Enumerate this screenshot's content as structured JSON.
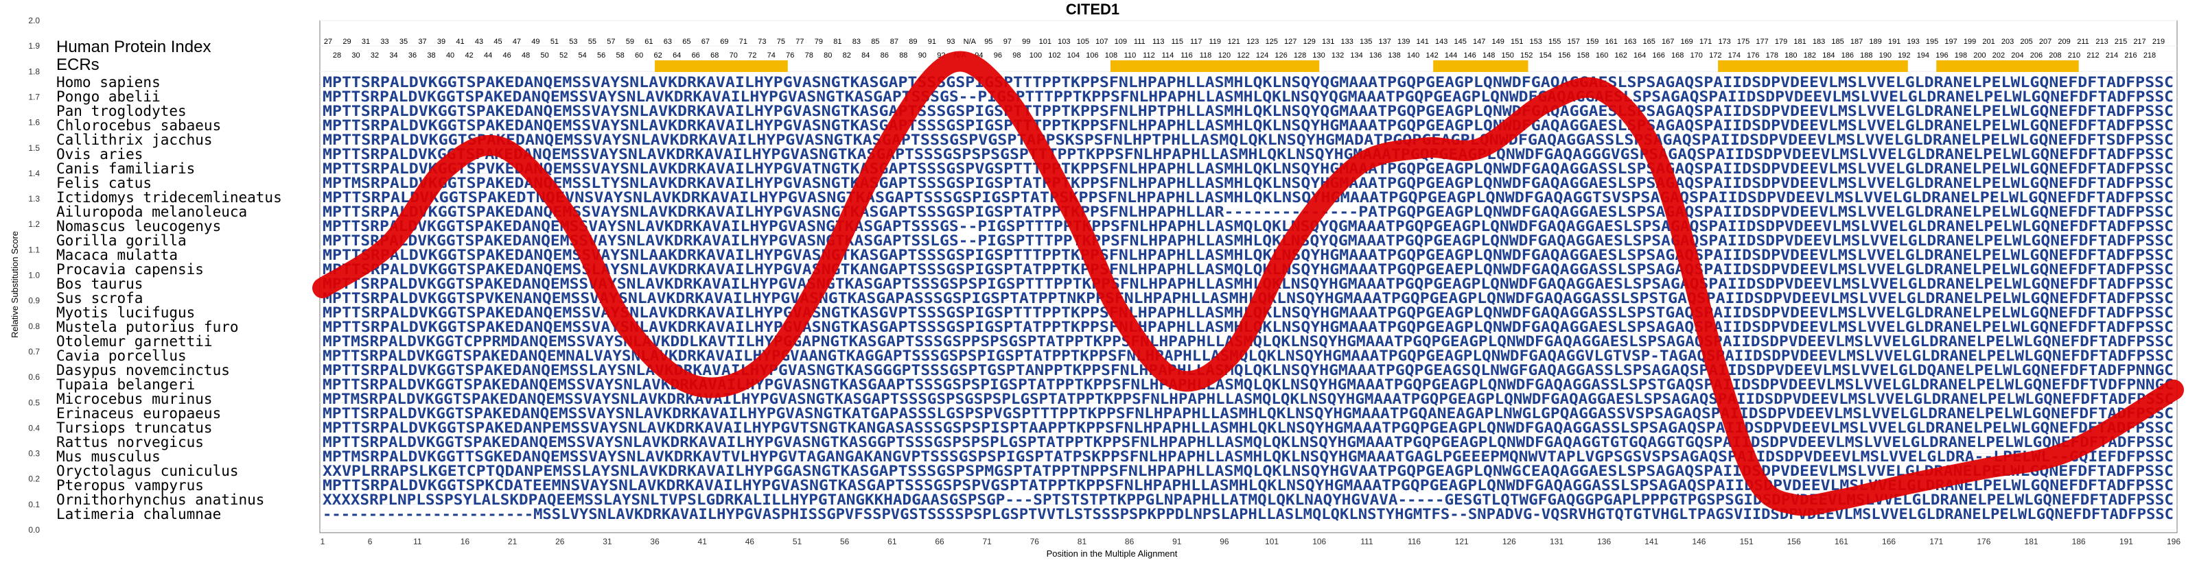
{
  "chart_data": {
    "type": "line",
    "title": "CITED1",
    "xlabel": "Position in the Multiple Alignment",
    "ylabel": "Relative Substitution Score",
    "ylim": [
      0,
      2.0
    ],
    "xlim": [
      1,
      196
    ],
    "y_ticks": [
      "0.0",
      "0.1",
      "0.2",
      "0.3",
      "0.4",
      "0.5",
      "0.6",
      "0.7",
      "0.8",
      "0.9",
      "1.0",
      "1.1",
      "1.2",
      "1.3",
      "1.4",
      "1.5",
      "1.6",
      "1.7",
      "1.8",
      "1.9",
      "2.0"
    ],
    "x_ticks": [
      "1",
      "6",
      "11",
      "16",
      "21",
      "26",
      "31",
      "36",
      "41",
      "46",
      "51",
      "56",
      "61",
      "66",
      "71",
      "76",
      "81",
      "86",
      "91",
      "96",
      "101",
      "106",
      "111",
      "116",
      "121",
      "126",
      "131",
      "136",
      "141",
      "146",
      "151",
      "156",
      "161",
      "166",
      "171",
      "176",
      "181",
      "186",
      "191",
      "196"
    ],
    "human_index_label": "Human Protein Index",
    "ecr_label": "ECRs",
    "human_index_top": [
      "27",
      "29",
      "31",
      "33",
      "35",
      "37",
      "39",
      "41",
      "43",
      "45",
      "47",
      "49",
      "51",
      "53",
      "55",
      "57",
      "59",
      "61",
      "63",
      "65",
      "67",
      "69",
      "71",
      "73",
      "75",
      "77",
      "79",
      "81",
      "83",
      "85",
      "87",
      "89",
      "91",
      "93",
      "N/A",
      "95",
      "97",
      "99",
      "101",
      "103",
      "105",
      "107",
      "109",
      "111",
      "113",
      "115",
      "117",
      "119",
      "121",
      "123",
      "125",
      "127",
      "129",
      "131",
      "133",
      "135",
      "137",
      "139",
      "141",
      "143",
      "145",
      "147",
      "149",
      "151",
      "153",
      "155",
      "157",
      "159",
      "161",
      "163",
      "165",
      "167",
      "169",
      "171",
      "173",
      "175",
      "177",
      "179",
      "181",
      "183",
      "185",
      "187",
      "189",
      "191",
      "193",
      "195",
      "197",
      "199",
      "201",
      "203",
      "205",
      "207",
      "209",
      "211",
      "213",
      "215",
      "217",
      "219"
    ],
    "human_index_bottom": [
      "28",
      "30",
      "32",
      "34",
      "36",
      "38",
      "40",
      "42",
      "44",
      "46",
      "48",
      "50",
      "52",
      "54",
      "56",
      "58",
      "60",
      "62",
      "64",
      "66",
      "68",
      "70",
      "72",
      "74",
      "76",
      "78",
      "80",
      "82",
      "84",
      "86",
      "88",
      "90",
      "92",
      "N/A",
      "94",
      "96",
      "98",
      "100",
      "102",
      "104",
      "106",
      "108",
      "110",
      "112",
      "114",
      "116",
      "118",
      "120",
      "122",
      "124",
      "126",
      "128",
      "130",
      "132",
      "134",
      "136",
      "138",
      "140",
      "142",
      "144",
      "146",
      "148",
      "150",
      "152",
      "154",
      "156",
      "158",
      "160",
      "162",
      "164",
      "166",
      "168",
      "170",
      "172",
      "174",
      "176",
      "178",
      "180",
      "182",
      "184",
      "186",
      "188",
      "190",
      "192",
      "194",
      "196",
      "198",
      "200",
      "202",
      "204",
      "206",
      "208",
      "210",
      "212",
      "214",
      "216",
      "218"
    ],
    "ecr_regions": [
      [
        36,
        50
      ],
      [
        84,
        106
      ],
      [
        118,
        128
      ],
      [
        148,
        168
      ],
      [
        171,
        186
      ]
    ],
    "ecr_color": "#f5b800",
    "curve_color": "#e00000",
    "curve": {
      "x": [
        1,
        8,
        14,
        20,
        27,
        33,
        40,
        47,
        53,
        60,
        67,
        73,
        80,
        85,
        91,
        97,
        103,
        110,
        117,
        123,
        130,
        136,
        142,
        148,
        152,
        156,
        161,
        168,
        176,
        185,
        196
      ],
      "y": [
        0.95,
        1.12,
        1.42,
        1.5,
        1.22,
        0.8,
        0.57,
        0.63,
        0.95,
        1.48,
        1.83,
        1.7,
        1.25,
        0.85,
        0.59,
        0.7,
        1.12,
        1.43,
        1.5,
        1.5,
        1.68,
        1.72,
        1.42,
        0.62,
        0.2,
        0.1,
        0.12,
        0.18,
        0.24,
        0.31,
        0.55
      ]
    },
    "species": [
      {
        "name": "Homo sapiens",
        "seq": "MPTTSRPALDVKGGTSPAKEDANQEMSSVAYSNLAVKDRKAVAILHYPGVASNGTKASGAPTSSSGSPIGSPTTTPPTKPPSFNLHPAPHLLASMHLQKLNSQYQGMAAATPGQPGEAGPLQNWDFGAQAGGAESLSPSAGAQSPAIIDSDPVDEEVLMSLVVELGLDRANELPELWLGQNEFDFTADFPSSC"
      },
      {
        "name": "Pongo abelii",
        "seq": "MPTTSRPALDVKGGTSPAKEDANQEMSSVAYSNLAVKDRKAVAILHYPGVASNGTKASGAPTSSSGS--PIGSPTTTPPTKPPSFNLHPAPHLLASMHLQKLNSQYQGMAAATPGQPGEAGPLQNWDFGAQAGGAESLSPSAGAQSPAIIDSDPVDEEVLMSLVVELGLDRANELPELWLGQNEFDFTADFPSSC"
      },
      {
        "name": "Pan troglodytes",
        "seq": "MPTTSRPALDVKGGTSPAKEDANQEMSSVAYSNLAVKDRKAVAILHYPGVASNGTKASGAPTSSSGSPIGSPTTTPPTKPPSFNLHPTPHLLASMHLQKLNSQYQGMAAATPGQPGEAGPLQNWDFGAQAGGAESLSPSAGAQSPAIIDSDPVDEEVLMSLVVELGLDRANELPELWLGQNEFDFTADFPSSC"
      },
      {
        "name": "Chlorocebus sabaeus",
        "seq": "MPTTSRPALDVKGGTSPAKEDANQEMSSVAYSNLAVKDRKAVAILHYPGVASNGTKASGAPTSSSGSPIGSPTTTPPTKPPSFNLHPAPHLLASMHLQKLNSQYHGMAAATPGQPGEAGPLQNWDFGAQAGGAESLSPSAGAQSPAIIDSDPVDEEVLMSLVVELGLDRANELPELWLGQNEFDFTADFPSSC"
      },
      {
        "name": "Callithrix jacchus",
        "seq": "MPTTSRPALDVKGGTSPAKEDANQEMSSVAYSNLAVKDRKAVAILHYPGVASNGTKASGAPTSSSGSPVGSPTAPPSKSPSFNLHPTPHLLASMQLQKLNSQYHGMADATPGQPGEAGPLQNWDFGAQAGGASSLSPSAGAQSPAIIDSDPVDEEVLMSLVVELGLDRANELPELWLGQNEFDFTSDFPSSC"
      },
      {
        "name": "Ovis aries",
        "seq": "MPTTSRPALDVKGGTSPAKEDANQEMSSVAYSNLAVKDRKAVAILHYPGVASNGTKASGAPTSSSGSPSPSGSPTTTPPTKPPSFNLHPAPHLLASMHLQKLNSQYHGMAAATPGQPGEAGPLQNWDFGAQAGGGVGSPSAGAQSPAIIDSDPVDEEVLMSLVVELGLDRANELPELWLGQNEFDFTADFPSSC"
      },
      {
        "name": "Canis familiaris",
        "seq": "MPTTSRPALDVKGGTSPVKEDANQEMSSVAYSNLAVKDRKAVAILHYPGVATNGTKASGAPTSSSGSPVGSPTTTPPTKPPSFNLHPAPHLLASMHLQKLNSQYHGMAAATPGQPGEAGPLQNWDFGAQAGGASSLSPSAGAQSPAIIDSDPVDEEVLMSLVVELGLDRANELPELWLGQNEFDFTADFPSSC"
      },
      {
        "name": "Felis catus",
        "seq": "MPTMSRPALDVKGGTSPAKEDANQEMSSLTYSNLAVKDRKAVAILHYPGVASNGTKASGAPTSSSGSPIGSPTATPPTKPPSFNLHPAPHLLASMHLQKLNSQYHGMAAATPGQPGEAGPLQNWDFGAQAGGAESLSPSAGAQSPAIIDSDPVDEEVLMSLVVELGLDRANELPELWLGQNEFDFTADFPSSC"
      },
      {
        "name": "Ictidomys tridecemlineatus",
        "seq": "MPTTSRPALDVKGGTSPAKEDTNQEVNSVAYSNLAVKDRKAVAILHYPGVASNGTKASGAPTSSSGSPIGSPTATPSKPPSFNLHPAPHLLASMHLQKLNSQYHGMAAATPGQPGEAGPLQNWDFGAQAGGTSVSPSAGAQSPAIIDSDPVDEEVLMSLVVELGLDRANELPELWLGQNEFDFTADFPSSC"
      },
      {
        "name": "Ailuropoda melanoleuca",
        "seq": "MPTTSRPALDVKGGTSPAKEDANQEMSSVAYSNLAVKDRKAVAILHYPGVASNGTKASGAPTSSSGSPIGSPTATPPTKPPSFNLHPAPHLLAR--------------PATPGQPGEAGPLQNWDFGAQAGGAESLSPSAGAQSPAIIDSDPVDEEVLMSLVVELGLDRANELPELWLGQNEFDFTADFPSSC"
      },
      {
        "name": "Nomascus leucogenys",
        "seq": "MPTTSRPALDVKGGTSPAKEDANQEMSSVAYSNLAVKDRKAVAILHYPGVASNGTKASGAPTSSSGS--PIGSPTTTPPTKPPSFNLHPAPHLLASMQLQKLNSQYQGMAAATPGQPGEAGPLQNWDFGAQAGGAESLSPSAGAQSPAIIDSDPVDEEVLMSLVVELGLDRANELPELWLGQNEFDFTADFPSSC"
      },
      {
        "name": "Gorilla gorilla",
        "seq": "MPTTSRPALDVKGGTSPAKEDANQEMSSVAYSNLAVKDRKAVAILHYPGVASNGTKASGAPTSSLGS--PIGSPTTTPPTKPPSFNLHPAPHLLASMHLQKLNSQYQGMAAATPGQPGEAGPLQNWDFGAQAGGAESLSPSAGAQSPAIIDSDPVDEEVLMSLVVELGLDRANELPELWLGQNEFDFTADFPSSC"
      },
      {
        "name": "Macaca mulatta",
        "seq": "MPTTSRPALDVKGGTSPAKEDANQEMSSVAYSNLAAKDRKAVAILHYPGVASNGTKASGAPTSSSGSPIGSPTTTPPTKPPSFNLHPAPHLLASMHLQKLNSQYHGMAAATPGQPGEAGPLQNWDFGAQAGGAESLSPSAGAQSPAIIDSDPVDEEVLMSLVVELGLDRANELPELWLGQNEFDFTADFPSSC"
      },
      {
        "name": "Procavia capensis",
        "seq": "MPTTSRPALDVKGGTSPAKEDANQEMSSLAYSNLAVKDRKAVAILHYPGVASNGTKANGAPTSSSGSPIGSPTATPPTKPPSFNLHPAPHLLASMQLQKLNSQYHGMAAATPGQPGEAEPLQNWDFGAQAGGASSLSPSAGAQSPAIIDSDPVDEEVLMSLVVELGLDRANELPELWLGQNEFDFTADFPSSC"
      },
      {
        "name": "Bos taurus",
        "seq": "MPTTSRPALDVKGGTSPAKEDANQEMSSVAYSNLAVKDRKAVAILHYPGVASNGTKASGAPTSSSGSPSPIGSPTTTPPTKPPSFNLHPAPHLLASMHLQKLNSQYHGMAAATPGQPGEAGPLQNWDFGAQAGGAESLSPSAGAQSPAIIDSDPVDEEVLMSLVVELGLDRANELPELWLGQNEFDFTADFPSSC"
      },
      {
        "name": "Sus scrofa",
        "seq": "MPTTSRPALDVKGGTSPVKENANQEMSSVAYSNLAVKDRKAVAILHYPGVASNGTKASGAPASSSGSPIGSPTATPPTNKPPSFNLHPAPHLLASMHLQKLNSQYHGMAAATPGQPGEAGPLQNWDFGAQAGGASSLSPSTGAQSPAIIDSDPVDEEVLMSLVVELGLDRANELPELWLGQNEFDFTADFPSSC"
      },
      {
        "name": "Myotis lucifugus",
        "seq": "MPTTSRPALDVKGGTSPAKEDANQEMSSVAYSNLAVKDRKAVAILHYPGVASNGTKASGVPTSSSGSPIGSPTTTPPTKPPSFNLHPAPHLLASMHLQKLNSQYHGMAAATPGQPGEAGPLQNWDFGAQAGGASSLSPSTGAQSPAIIDSDPVDEEVLMSLVVELGLDRANELPELWLGQNEFDFTADFPSSC"
      },
      {
        "name": "Mustela putorius furo",
        "seq": "MPTTSRPALDVKGGTSPAKEDANQEMSSVAYSNLAVKDRKAVAILHYPGVASNGTKASGAPTSSSGSPIGSPTATPPTKPPSFNLHPAPHLLASMHLQKLNSQYHGMAAATPGQPGEAGPLQNWDFGAQAGGAESLSPSAGAQSPAIIDSDPVDEEVLMSLVVELGLDRANELPELWLGQNEFDFTADFPSSC"
      },
      {
        "name": "Otolemur garnettii",
        "seq": "MPTMSRPALDVKGGTCPPRMDANQEMSSVAYSNLAVKDDLKAVTILHYPGGAPNGTKASGAPTSSSGSPPSPSGSPTATPPTKPPSFNLHPAPHLLASMQLQKLNSQYHGMAAATPGQPGEAGPLQNWDFGAQAGGAESLSPSAGAQSPAIIDSDPVDEEVLMSLVVELGLDRANELPELWLGQNEFDFTADFPSSC"
      },
      {
        "name": "Cavia porcellus",
        "seq": "MPTTSRPALDVKGGTSPAKEDANQEMNALVAYSNLAVKDRKAVAILHYPGVAANGTKAGGAPTSSSGSPSPIGSPTATPPTKPPSFNLHPAPHLLASMQLQKLNSQYHGMAAATPGQPGEAGPLQNWDFGAQAGGVLGTVSP-TAGAQSPAIIDSDPVDEEVLMSLVVELGLDRANELPELWLGQNEFDFTADFPSSC"
      },
      {
        "name": "Dasypus novemcinctus",
        "seq": "MPTTSRPALDVKGGTSPAKEDANQEMSSLAYSNLAVKDRKAVAILHYPGVASNGTKASGGGPTSSSGSPTGSPTANPPTKPPSFNLHPAPHLLASMQLQKLNSQYHGMAAATPGQPGEAGSQLNWGFGAQAGGASSLSPSAGAQSPAIIDSDPVDEEVLMSLVVELGLDQANELPELWLGQNEFDFTADFPNNGC"
      },
      {
        "name": "Tupaia belangeri",
        "seq": "MPTTSRPALDVKGGTSPAKEDANQEMSSVAYSNLAVKDRKAVAILHYPGVASNGTKASGAAPTSSSGSPSPIGSPTATPPTKPPSFNLHPAPHLLASMQLQKLNSQYHGMAAATPGQPGEAGPLQNWDFGAQAGGASSLSPSTGAQSPAIIDSDPVDEEVLMSLVVELGLDRANELPELWLGQNEFDFTVDFPNNGC"
      },
      {
        "name": "Microcebus murinus",
        "seq": "MPTMSRPALDVKGGTSPAKEDANQEMSSVAYSNLAVKDRKAVAILHYPGVASNGTKASGAPTSSSGSPSGSPSPLGSPTATPPTKPPSFNLHPAPHLLASMQLQKLNSQYHGMAAATPGQPGEAGPLQNWDFGAQAGGAESLSPSAGAQSPAIIDSDPVDEEVLMSLVVELGLDRANELPELWLGQNEFDFTADFPSSC"
      },
      {
        "name": "Erinaceus europaeus",
        "seq": "MPTTSRPALDVKGGTSPAKEDANQEMSSVAYSNLAVKDRKAVAILHYPGVASNGTKATGAPASSSLGSPSPVGSPTTTPPTKPPSFNLHPAPHLLASMHLQKLNSQYHGMAAATPGQANEAGAPLNWGLGPQAGGASSVSPSAGAQSPAIIDSDPVDEEVLMSLVVELGLDRANELPELWLGQNEFDFTADFPSSC"
      },
      {
        "name": "Tursiops truncatus",
        "seq": "MPTTSRPALDVKGGTSPAKEDANPEMSSVAYSNLAVKDRKAVAILHYPGVTSNGTKANGASASSSGSPSPISPTAAPPTKPPSFNLHPAPHLLASMHLQKLNSQYHGMAAATPGQPGEAGPLQNWDFGAQAGGASSLSPSAGAQSPAIIDSDPVDEEVLMSLVVELGLDRANELPELWLGQNEFDFTADFPSSC"
      },
      {
        "name": "Rattus norvegicus",
        "seq": "MPTTSRPALDVKGGTSPAKEDANQEMSSVAYSNLAVKDRKAVAILHYPGVASNGTKASGGPTSSSGSPSPSPLGSPTATPPTKPPSFNLHPAPHLLASMQLQKLNSQYHGMAAATPGQPGEAGPLQNWDFGAQAGGTGTGQAGGTGQSPAIIDSDPVDEEVLMSLVVELGLDRANELPELWLGQNEFDFTADFPSSC"
      },
      {
        "name": "Mus musculus",
        "seq": "MPTMSRPALDVKGGTTSGKEDANQEMSSVAYSNLAVKDRKAVTVLHYPGVTAGANGAKANGVPTSSSGSPSPIGSPTATPSKPPSFNLHPAPHLLASMHLQKLNSQYHGMAAATGAGLPGEEEPMQNWVTAPLVGPSGSVSPSAGAQSPAIIDSDPVDEEVLMSLVVELGLDRA--LPELWL--GQIEFDFPSSC"
      },
      {
        "name": "Oryctolagus cuniculus",
        "seq": "XXVPLRRAPSLKGETCPTQDANPEMSSLAYSNLAVKDRKAVAILHYPGGASNGTKASGAPTSSSGSPSPMGSPTATPPTNPPSFNLHPAPHLLASMQLQKLNSQYHGVAATPGQPGEAGPLQNWGCEAQAGGAESLSPSAGAQSPAIIDSDPVDEEVLMSLVVELGLDRANELPELWLGQNEFDFTADFPSSC"
      },
      {
        "name": "Pteropus vampyrus",
        "seq": "MPTTSRPALDVKGGTSPKCDATEEMNSVAYSNLAVKDRKAVAILHYPGVASNGTKASGAPTSSSGSPSPVGSPTATPPTKPPSFNLHPAPHLLASMHLQKLNSQYHGMAAATPGQPGEAGPLQNWDFGAQAGGASSLSPSAGAQSPAIIDSDPVDEEVLMSLVVELGLDRANELPELWLGQNEFDFTADFPSSC"
      },
      {
        "name": "Ornithorhynchus anatinus",
        "seq": "XXXXSRPLNPLSSPSYLALSKDPAQEEMSSLAYSNLTVPSLGDRKALILLHYPGTANGKKHADGAASGSPSGP---SPTSTSTPTKPPGLNPAPHLLATMQLQKLNAQYHGVAVA-----GESGTLQTWGFGAQGGPGAPLPPPGTPGSPSGIDSDPVDEEVLMSLVVELGLDRANELPELWLGQNEFDFTADFPSSC"
      },
      {
        "name": "Latimeria chalumnae",
        "seq": "-----------------------MSSLVYSNLAVKDRKAVAILHYPGVASPHISSGPVFSSPVGSTSSSSPSPLGSPTVVTLSTSSSPSPKPPDLNPSLAPHLLASLMQLQKLNSTYHGMTFS--SNPADVG-VQSRVHGTQTGTVHGLTPAGSVIIDSDPVDEEVLMSLVVELGLDRANELPELWLGQNEFDFTADFPSSC"
      }
    ]
  }
}
